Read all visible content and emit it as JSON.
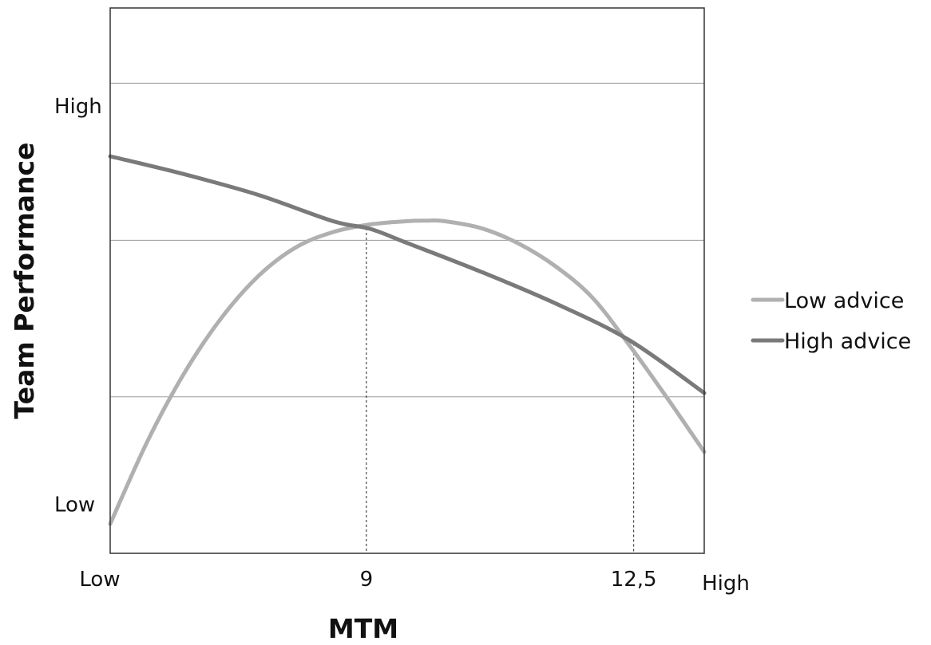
{
  "chart_data": {
    "type": "line",
    "title": "",
    "xlabel": "MTM",
    "ylabel": "Team Performance",
    "xlim": [
      0,
      16
    ],
    "ylim": [
      0,
      100
    ],
    "x_ticks": [
      {
        "value": 0,
        "label": "Low"
      },
      {
        "value": 6.9,
        "label": "9"
      },
      {
        "value": 14.1,
        "label": "12,5"
      },
      {
        "value": 16,
        "label": "High"
      }
    ],
    "y_ticks": [
      {
        "value": 9,
        "label": "Low"
      },
      {
        "value": 82,
        "label": "High"
      }
    ],
    "gridlines_y": [
      28.7,
      57.4,
      86.2
    ],
    "reference_lines_x": [
      6.9,
      14.1
    ],
    "legend_position": "right",
    "series": [
      {
        "name": "Low advice",
        "color": "#b0b0b0",
        "x": [
          0,
          1,
          2,
          3,
          4,
          5,
          6,
          7,
          8,
          8.5,
          9,
          10,
          11,
          12,
          13,
          14,
          15,
          16
        ],
        "y": [
          5.4,
          20.5,
          33.1,
          43.2,
          50.9,
          56.1,
          58.9,
          60.3,
          60.9,
          61.0,
          60.9,
          59.6,
          56.8,
          52.6,
          46.8,
          38.0,
          28.5,
          18.6
        ]
      },
      {
        "name": "High advice",
        "color": "#7a7a7a",
        "x": [
          0,
          2,
          4,
          6,
          7,
          8,
          10,
          12,
          14,
          16
        ],
        "y": [
          72.8,
          69.5,
          65.7,
          60.9,
          59.5,
          56.9,
          51.6,
          45.8,
          39.0,
          29.4
        ]
      }
    ]
  }
}
